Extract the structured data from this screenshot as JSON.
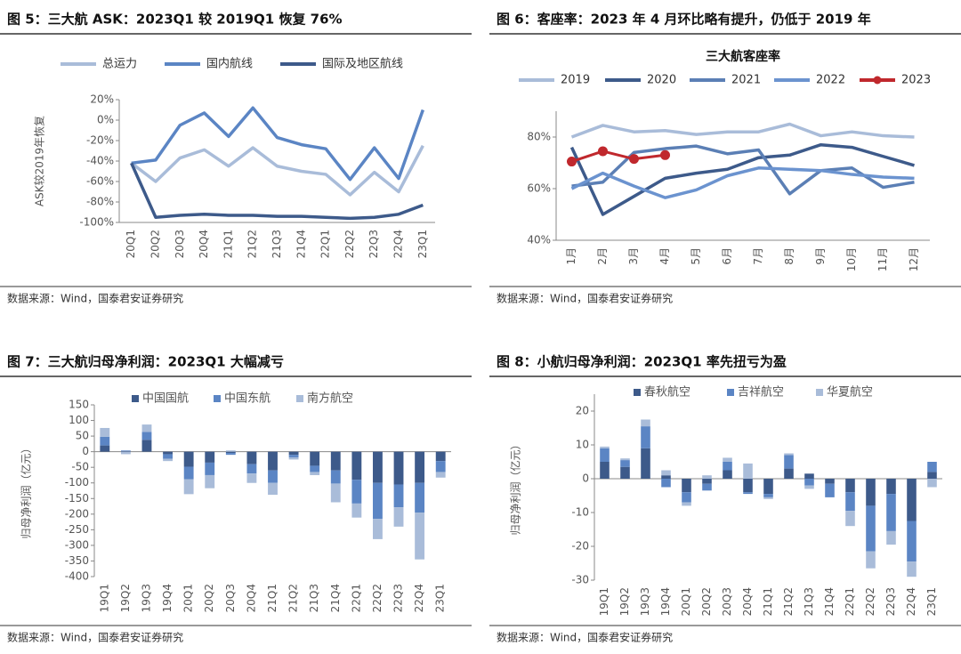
{
  "chart_data": [
    {
      "type": "line",
      "title": "图 5：三大航 ASK：2023Q1 较 2019Q1 恢复 76%",
      "source": "数据来源：Wind，国泰君安证券研究",
      "ylabel": "ASK较2019年恢复",
      "categories": [
        "20Q1",
        "20Q2",
        "20Q3",
        "20Q4",
        "21Q1",
        "21Q2",
        "21Q3",
        "21Q4",
        "22Q1",
        "22Q2",
        "22Q3",
        "22Q4",
        "23Q1"
      ],
      "series": [
        {
          "name": "总运力",
          "color": "#a9bcd9",
          "values": [
            -42,
            -60,
            -37,
            -29,
            -45,
            -27,
            -45,
            -50,
            -53,
            -73,
            -51,
            -70,
            -25
          ]
        },
        {
          "name": "国内航线",
          "color": "#5b85c4",
          "values": [
            -42,
            -39,
            -5,
            7,
            -16,
            12,
            -17,
            -24,
            -28,
            -58,
            -27,
            -57,
            10
          ]
        },
        {
          "name": "国际及地区航线",
          "color": "#3d5a8a",
          "values": [
            -42,
            -95,
            -93,
            -92,
            -93,
            -93,
            -94,
            -94,
            -95,
            -96,
            -95,
            -92,
            -83
          ]
        }
      ],
      "ylim": [
        -100,
        20
      ],
      "yticks": [
        {
          "value": -100,
          "label": "-100%"
        },
        {
          "value": -80,
          "label": "-80%"
        },
        {
          "value": -60,
          "label": "-60%"
        },
        {
          "value": -40,
          "label": "-40%"
        },
        {
          "value": -20,
          "label": "-20%"
        },
        {
          "value": 0,
          "label": "0%"
        },
        {
          "value": 20,
          "label": "20%"
        }
      ]
    },
    {
      "type": "line",
      "title": "图 6：客座率：2023 年 4 月环比略有提升，仍低于 2019 年",
      "subtitle": "三大航客座率",
      "source": "数据来源：Wind，国泰君安证券研究",
      "categories": [
        "1月",
        "2月",
        "3月",
        "4月",
        "5月",
        "6月",
        "7月",
        "8月",
        "9月",
        "10月",
        "11月",
        "12月"
      ],
      "series": [
        {
          "name": "2019",
          "color": "#a9bcd9",
          "values": [
            80,
            84.5,
            82,
            82.5,
            81,
            82,
            82,
            85,
            80.5,
            82,
            80.5,
            80
          ]
        },
        {
          "name": "2020",
          "color": "#3d5a8a",
          "values": [
            76,
            50,
            57,
            64,
            66,
            67.5,
            72,
            73,
            77,
            76,
            72.5,
            69
          ]
        },
        {
          "name": "2021",
          "color": "#5b7fb5",
          "values": [
            61,
            62.5,
            74,
            75.5,
            76.5,
            73.5,
            75,
            58,
            67,
            68,
            60.5,
            62.5
          ]
        },
        {
          "name": "2022",
          "color": "#6b93cf",
          "values": [
            60,
            66,
            61,
            56.5,
            59.5,
            65,
            68,
            67.5,
            67,
            65.5,
            64.5,
            64
          ]
        },
        {
          "name": "2023",
          "color": "#c0282d",
          "markers": true,
          "values": [
            70.5,
            74.5,
            71.5,
            73,
            null,
            null,
            null,
            null,
            null,
            null,
            null,
            null
          ]
        }
      ],
      "ylim": [
        40,
        90
      ],
      "yticks": [
        {
          "value": 40,
          "label": "40%"
        },
        {
          "value": 60,
          "label": "60%"
        },
        {
          "value": 80,
          "label": "80%"
        }
      ]
    },
    {
      "type": "bar",
      "stacked": true,
      "title": "图 7：三大航归母净利润：2023Q1 大幅减亏",
      "source": "数据来源：Wind，国泰君安证券研究",
      "ylabel": "归母净利润（亿元）",
      "categories": [
        "19Q1",
        "19Q2",
        "19Q3",
        "19Q4",
        "20Q1",
        "20Q2",
        "20Q3",
        "20Q4",
        "21Q1",
        "21Q2",
        "21Q3",
        "21Q4",
        "22Q1",
        "22Q2",
        "22Q3",
        "22Q4",
        "23Q1"
      ],
      "series": [
        {
          "name": "中国国航",
          "color": "#3d5a8a",
          "values": [
            20,
            2,
            38,
            -8,
            -48,
            -35,
            -4,
            -40,
            -60,
            -10,
            -45,
            -60,
            -90,
            -100,
            -105,
            -100,
            -30
          ]
        },
        {
          "name": "中国东航",
          "color": "#5b85c4",
          "values": [
            28,
            2,
            25,
            -15,
            -40,
            -40,
            -6,
            -30,
            -40,
            -8,
            -20,
            -42,
            -76,
            -115,
            -73,
            -95,
            -35
          ]
        },
        {
          "name": "南方航空",
          "color": "#a9bcd9",
          "values": [
            28,
            -8,
            24,
            -7,
            -48,
            -42,
            4,
            -30,
            -38,
            -7,
            -10,
            -60,
            -45,
            -65,
            -62,
            -150,
            -18
          ]
        }
      ],
      "ylim": [
        -400,
        150
      ],
      "yticks": [
        -400,
        -350,
        -300,
        -250,
        -200,
        -150,
        -100,
        -50,
        0,
        50,
        100,
        150
      ]
    },
    {
      "type": "bar",
      "stacked": true,
      "title": "图 8：小航归母净利润：2023Q1 率先扭亏为盈",
      "source": "数据来源：Wind，国泰君安证券研究",
      "ylabel": "归母净利润（亿元）",
      "categories": [
        "19Q1",
        "19Q2",
        "19Q3",
        "19Q4",
        "20Q1",
        "20Q2",
        "20Q3",
        "20Q4",
        "21Q1",
        "21Q2",
        "21Q3",
        "21Q4",
        "22Q1",
        "22Q2",
        "22Q3",
        "22Q4",
        "23Q1"
      ],
      "series": [
        {
          "name": "春秋航空",
          "color": "#3d5a8a",
          "values": [
            5,
            3.5,
            9,
            1,
            -4,
            -1.5,
            2.5,
            -4,
            -4.5,
            3,
            1.5,
            -1.5,
            -4,
            -8,
            -4.5,
            -12.5,
            2
          ]
        },
        {
          "name": "吉祥航空",
          "color": "#5b85c4",
          "values": [
            4,
            2,
            6.5,
            -2.5,
            -3,
            -2,
            2.5,
            -0.5,
            -1,
            4,
            -2,
            -4,
            -5.5,
            -13.5,
            -11,
            -12,
            3
          ]
        },
        {
          "name": "华夏航空",
          "color": "#a9bcd9",
          "values": [
            0.5,
            0.5,
            2,
            1.5,
            -1,
            1,
            1.2,
            4.5,
            -0.5,
            0.5,
            -1,
            0,
            -4.5,
            -5,
            -4,
            -4.5,
            -2.5
          ]
        }
      ],
      "ylim": [
        -30,
        25
      ],
      "yticks": [
        -30,
        -20,
        -10,
        0,
        10,
        20
      ]
    }
  ]
}
